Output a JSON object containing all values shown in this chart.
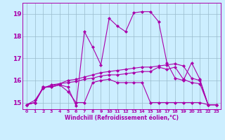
{
  "background_color": "#cceeff",
  "line_color": "#aa00aa",
  "grid_color": "#99bbcc",
  "xlabel": "Windchill (Refroidissement éolien,°C)",
  "ylabel_ticks": [
    15,
    16,
    17,
    18,
    19
  ],
  "x_ticks": [
    0,
    1,
    2,
    3,
    4,
    5,
    6,
    7,
    8,
    9,
    10,
    11,
    12,
    13,
    14,
    15,
    16,
    17,
    18,
    19,
    20,
    21,
    22,
    23
  ],
  "xlim": [
    -0.5,
    23.5
  ],
  "ylim": [
    14.7,
    19.5
  ],
  "series": [
    [
      14.9,
      15.0,
      15.7,
      15.7,
      15.8,
      15.7,
      14.85,
      18.2,
      17.5,
      16.7,
      18.8,
      18.45,
      18.2,
      19.05,
      19.1,
      19.1,
      18.65,
      16.8,
      16.1,
      16.0,
      16.8,
      16.05,
      14.9,
      14.9
    ],
    [
      14.9,
      15.0,
      15.7,
      15.7,
      15.8,
      15.5,
      15.0,
      15.0,
      15.9,
      16.0,
      16.05,
      15.9,
      15.9,
      15.9,
      15.9,
      15.0,
      15.0,
      15.0,
      15.0,
      15.0,
      15.0,
      15.0,
      14.9,
      14.9
    ],
    [
      14.9,
      15.1,
      15.65,
      15.8,
      15.85,
      16.0,
      16.05,
      16.15,
      16.25,
      16.35,
      16.4,
      16.45,
      16.5,
      16.55,
      16.6,
      16.6,
      16.65,
      16.7,
      16.75,
      16.65,
      16.1,
      16.0,
      14.9,
      14.9
    ],
    [
      14.9,
      15.0,
      15.65,
      15.75,
      15.85,
      15.9,
      15.95,
      16.05,
      16.1,
      16.2,
      16.25,
      16.25,
      16.3,
      16.35,
      16.4,
      16.4,
      16.6,
      16.5,
      16.6,
      16.05,
      15.9,
      15.85,
      14.9,
      14.9
    ]
  ]
}
